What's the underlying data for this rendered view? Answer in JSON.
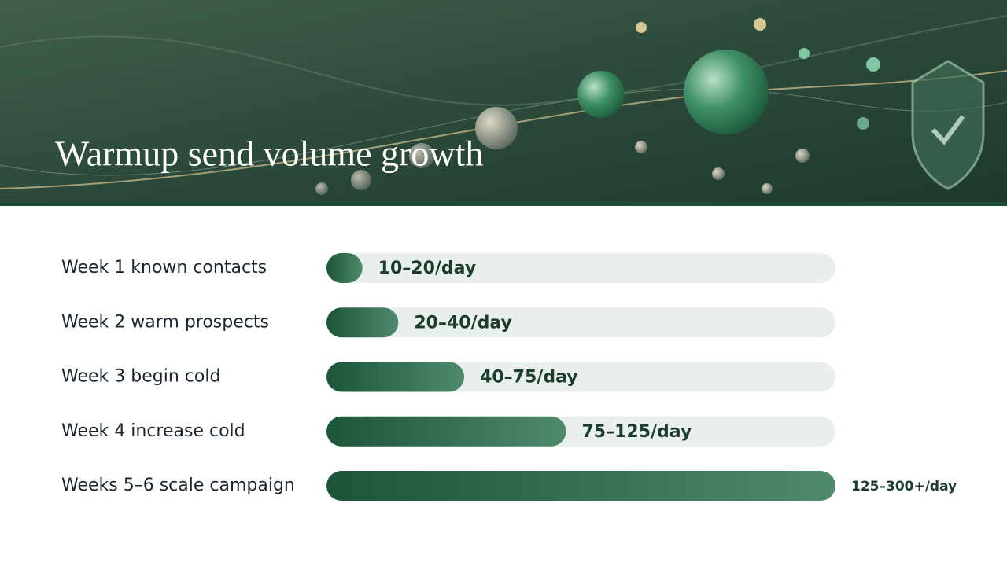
{
  "chart_data": {
    "type": "bar",
    "orientation": "horizontal",
    "title": "Warmup send volume growth",
    "categories": [
      "Week 1 known contacts",
      "Week 2 warm prospects",
      "Week 3 begin cold",
      "Week 4 increase cold",
      "Weeks 5–6 scale campaign"
    ],
    "values": [
      15,
      30,
      57.5,
      100,
      212.5
    ],
    "value_labels": [
      "10–20/day",
      "20–40/day",
      "40–75/day",
      "75–125/day",
      "125–300+/day"
    ],
    "xlim": [
      0,
      212.5
    ],
    "color": "#1f5a3c"
  }
}
